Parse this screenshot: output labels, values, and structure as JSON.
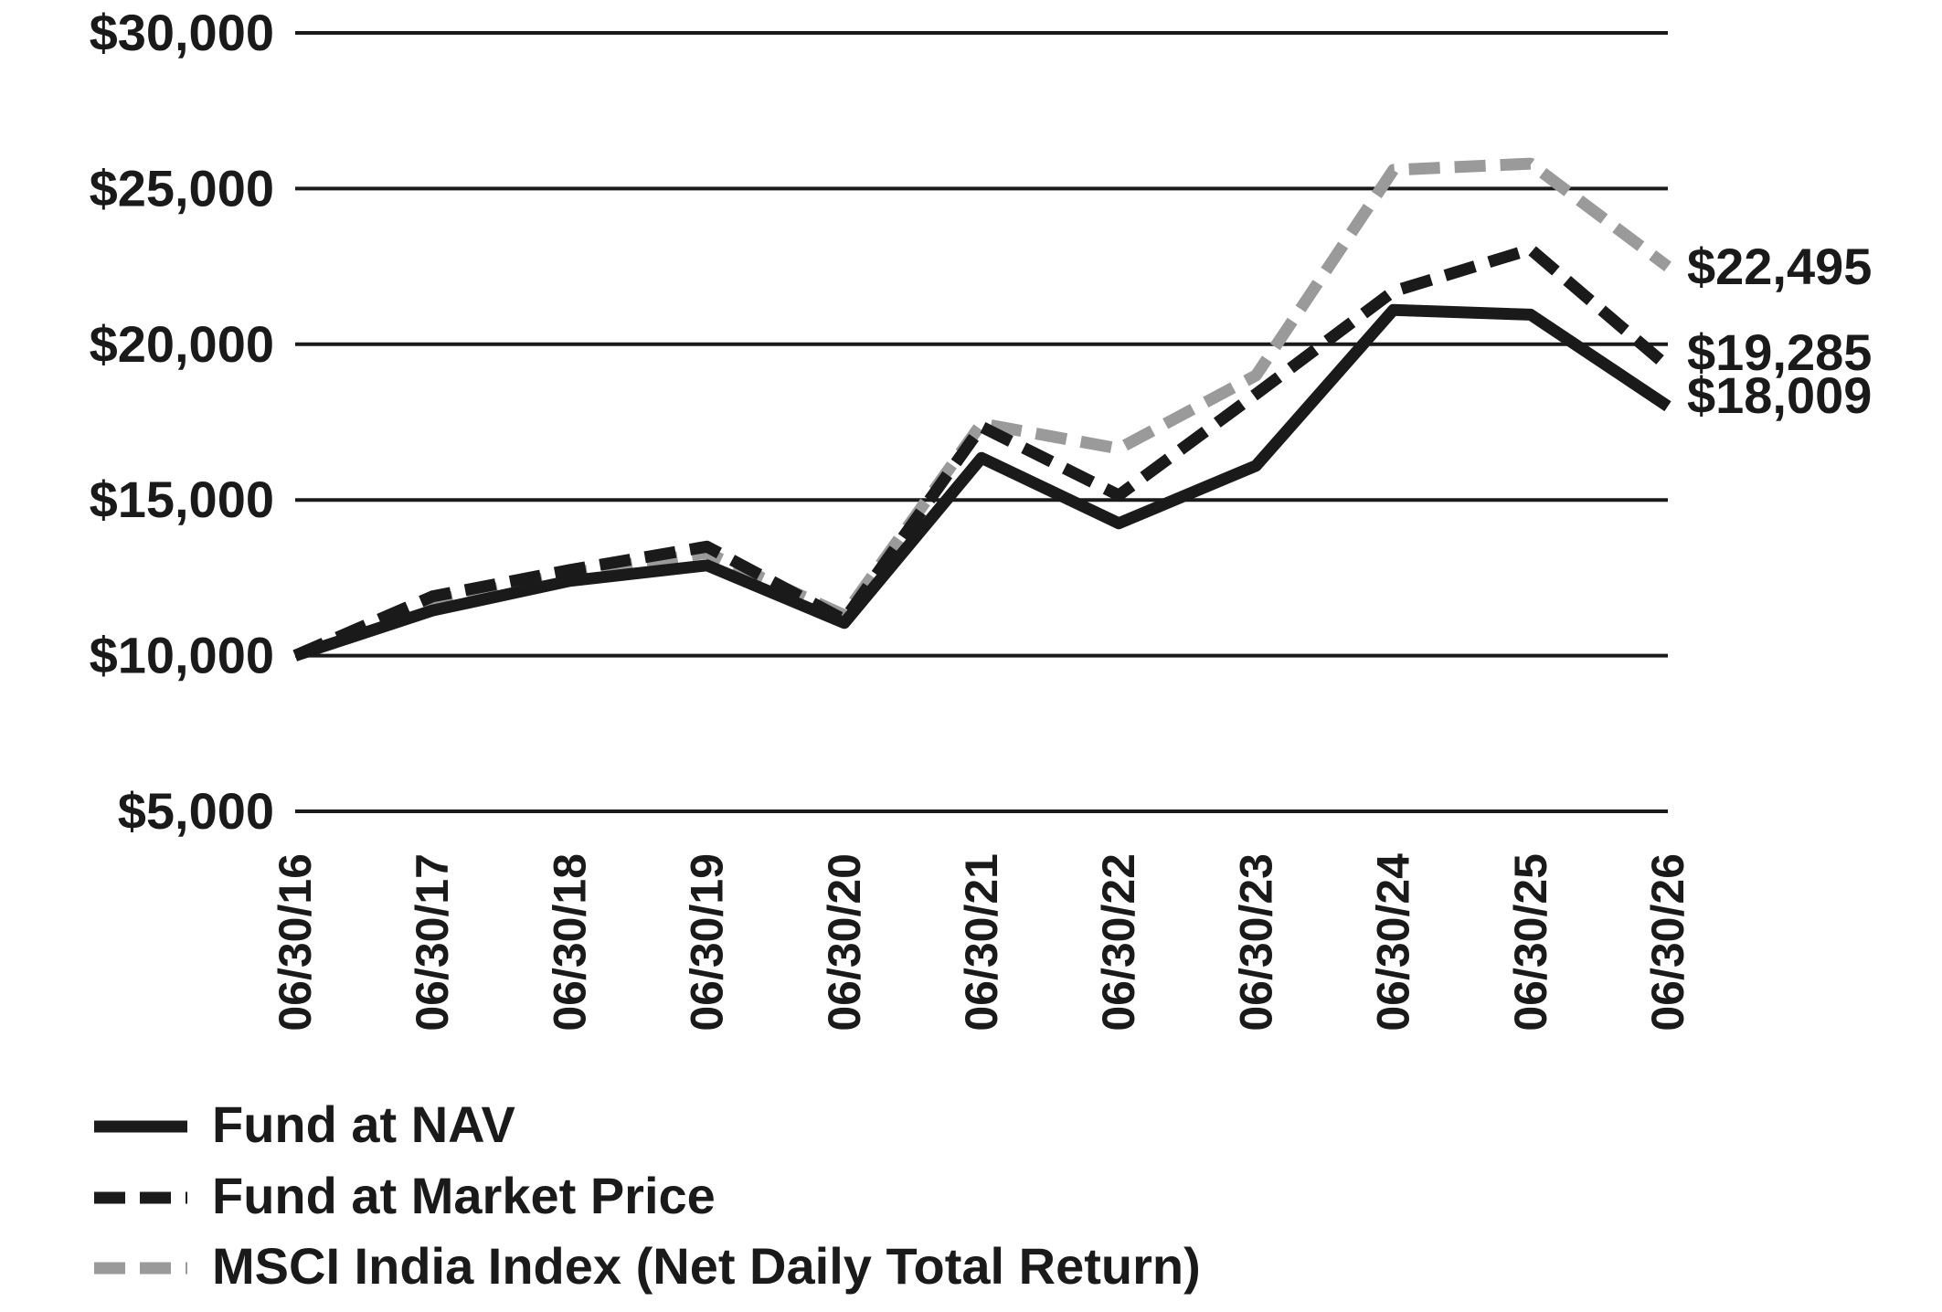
{
  "chart_data": {
    "type": "line",
    "title": "",
    "xlabel": "",
    "ylabel": "",
    "ylim": [
      5000,
      30000
    ],
    "y_ticks": [
      5000,
      10000,
      15000,
      20000,
      25000,
      30000
    ],
    "y_tick_labels": [
      "$5,000",
      "$10,000",
      "$15,000",
      "$20,000",
      "$25,000",
      "$30,000"
    ],
    "grid": true,
    "legend_position": "bottom-left",
    "categories": [
      "06/30/16",
      "06/30/17",
      "06/30/18",
      "06/30/19",
      "06/30/20",
      "06/30/21",
      "06/30/22",
      "06/30/23",
      "06/30/24",
      "06/30/25",
      "06/30/26"
    ],
    "series": [
      {
        "name": "Fund at NAV",
        "style": "solid",
        "color": "#1a1a1a",
        "values": [
          10000,
          11450,
          12400,
          12900,
          11050,
          16350,
          14250,
          16100,
          21100,
          20950,
          18009
        ],
        "end_label": "$18,009"
      },
      {
        "name": "Fund at Market Price",
        "style": "dashed",
        "color": "#1a1a1a",
        "values": [
          10000,
          11900,
          12750,
          13500,
          11150,
          17350,
          15150,
          18400,
          21700,
          23050,
          19285
        ],
        "end_label": "$19,285"
      },
      {
        "name": "MSCI India Index (Net Daily Total Return)",
        "style": "dashed",
        "color": "#9a9a9a",
        "values": [
          10000,
          11750,
          12650,
          13300,
          11300,
          17450,
          16650,
          19000,
          25600,
          25800,
          22495
        ],
        "end_label": "$22,495"
      }
    ]
  }
}
